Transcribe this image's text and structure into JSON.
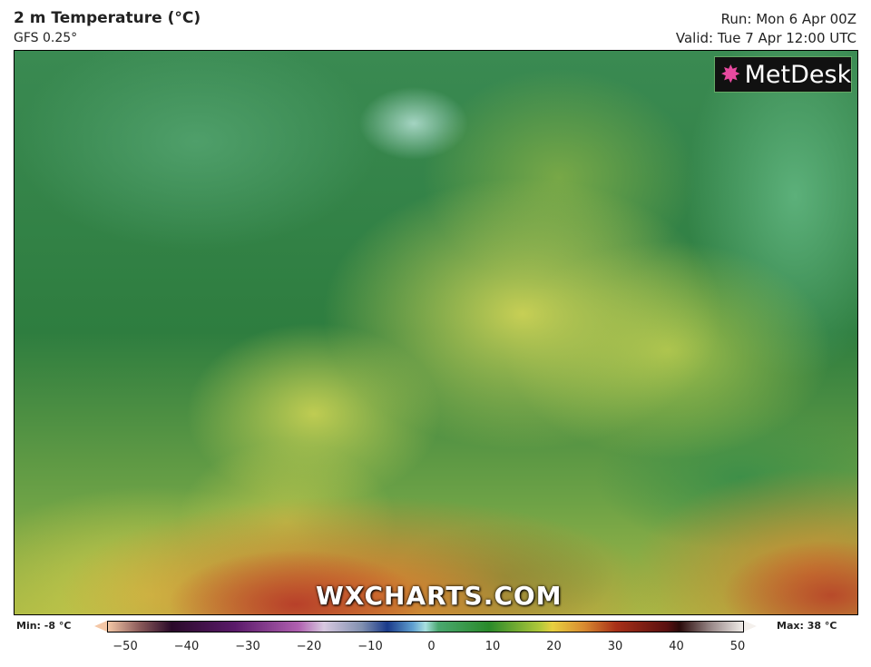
{
  "header": {
    "title": "2 m Temperature (°C)",
    "model": "GFS 0.25°",
    "run": "Run: Mon 6 Apr 00Z",
    "valid": "Valid: Tue 7 Apr 12:00 UTC"
  },
  "logo": {
    "text": "MetDesk"
  },
  "watermark": "WXCHARTS.COM",
  "legend": {
    "min": "Min: -8 °C",
    "max": "Max: 38 °C",
    "ticks": [
      "−50",
      "−40",
      "−30",
      "−20",
      "−10",
      "0",
      "10",
      "20",
      "30",
      "40",
      "50"
    ],
    "range": [
      -50,
      50
    ]
  }
}
